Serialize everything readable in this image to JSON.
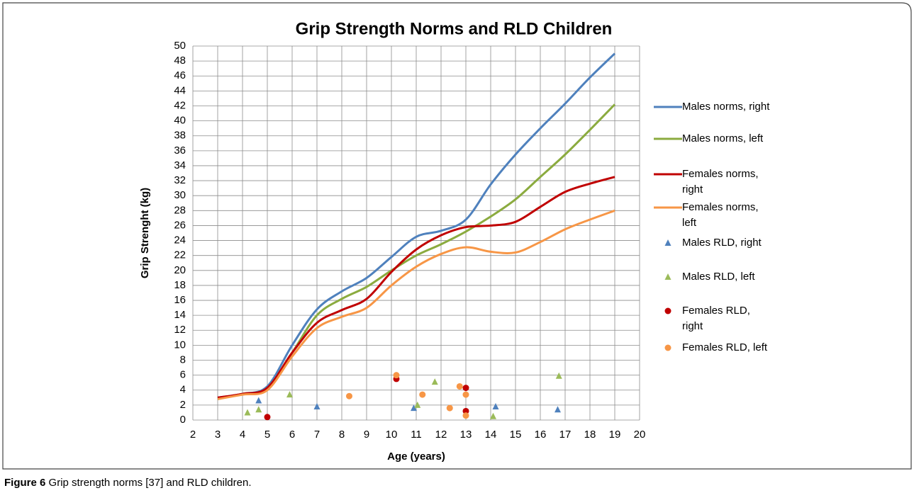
{
  "chart_data": {
    "type": "line",
    "title": "Grip Strength Norms and RLD Children",
    "xlabel": "Age (years)",
    "ylabel": "Grip Strenght (kg)",
    "xlim": [
      2,
      20
    ],
    "xticks": [
      2,
      3,
      4,
      5,
      6,
      7,
      8,
      9,
      10,
      11,
      12,
      13,
      14,
      15,
      16,
      17,
      18,
      19,
      20
    ],
    "ylim": [
      0,
      50
    ],
    "yticks": [
      0,
      2,
      4,
      6,
      8,
      10,
      12,
      14,
      16,
      18,
      20,
      22,
      24,
      26,
      28,
      30,
      32,
      34,
      36,
      38,
      40,
      42,
      44,
      46,
      48,
      50
    ],
    "grid": true,
    "smooth": true,
    "legend": "right",
    "series": [
      {
        "name": "Males norms, right",
        "type": "line",
        "color": "#4f81bd",
        "x": [
          3,
          4,
          5,
          6,
          7,
          8,
          9,
          10,
          11,
          12,
          13,
          14,
          15,
          16,
          17,
          18,
          19
        ],
        "values": [
          3.0,
          3.5,
          4.5,
          10,
          14.8,
          17.2,
          19,
          21.8,
          24.5,
          25.3,
          26.8,
          31.5,
          35.5,
          39,
          42.3,
          45.8,
          49
        ]
      },
      {
        "name": "Males norms, left",
        "type": "line",
        "color": "#8bab3f",
        "x": [
          3,
          4,
          5,
          6,
          7,
          8,
          9,
          10,
          11,
          12,
          13,
          14,
          15,
          16,
          17,
          18,
          19
        ],
        "values": [
          2.8,
          3.5,
          4.2,
          9,
          14,
          16.2,
          17.8,
          20,
          22,
          23.5,
          25.2,
          27.2,
          29.5,
          32.5,
          35.5,
          38.8,
          42.2
        ]
      },
      {
        "name": "Females norms, right",
        "type": "line",
        "color": "#c00000",
        "x": [
          3,
          4,
          5,
          6,
          7,
          8,
          9,
          10,
          11,
          12,
          13,
          14,
          15,
          16,
          17,
          18,
          19
        ],
        "values": [
          3.0,
          3.5,
          4.3,
          9,
          13,
          14.7,
          16.2,
          19.8,
          22.8,
          24.7,
          25.8,
          26,
          26.5,
          28.5,
          30.5,
          31.6,
          32.5
        ]
      },
      {
        "name": "Females norms, left",
        "type": "line",
        "color": "#f79646",
        "x": [
          3,
          4,
          5,
          6,
          7,
          8,
          9,
          10,
          11,
          12,
          13,
          14,
          15,
          16,
          17,
          18,
          19
        ],
        "values": [
          2.8,
          3.4,
          4,
          8.5,
          12.3,
          13.8,
          15,
          18,
          20.5,
          22.2,
          23.1,
          22.5,
          22.4,
          23.8,
          25.5,
          26.8,
          28
        ]
      },
      {
        "name": "Males RLD, right",
        "type": "scatter",
        "marker": "triangle",
        "color": "#4f81bd",
        "x": [
          4.65,
          7,
          10.9,
          14.2,
          16.7
        ],
        "values": [
          2.6,
          1.8,
          1.6,
          1.8,
          1.4
        ]
      },
      {
        "name": "Males RLD, left",
        "type": "scatter",
        "marker": "triangle",
        "color": "#9bbb59",
        "x": [
          4.2,
          4.65,
          5.9,
          11.05,
          11.75,
          14.1,
          16.75
        ],
        "values": [
          1.0,
          1.4,
          3.4,
          2.0,
          5.1,
          0.5,
          5.9
        ]
      },
      {
        "name": "Females RLD, right",
        "type": "scatter",
        "marker": "circle",
        "color": "#c00000",
        "x": [
          5,
          10.2,
          13,
          13
        ],
        "values": [
          0.4,
          5.5,
          4.3,
          1.2
        ]
      },
      {
        "name": "Females RLD, left",
        "type": "scatter",
        "marker": "circle",
        "color": "#f79646",
        "x": [
          8.3,
          10.2,
          11.25,
          12.35,
          12.75,
          13,
          13
        ],
        "values": [
          3.2,
          6.0,
          3.4,
          1.6,
          4.5,
          3.4,
          0.6
        ]
      }
    ]
  },
  "caption": {
    "label": "Figure 6",
    "text": "Grip strength norms [37] and RLD children."
  }
}
